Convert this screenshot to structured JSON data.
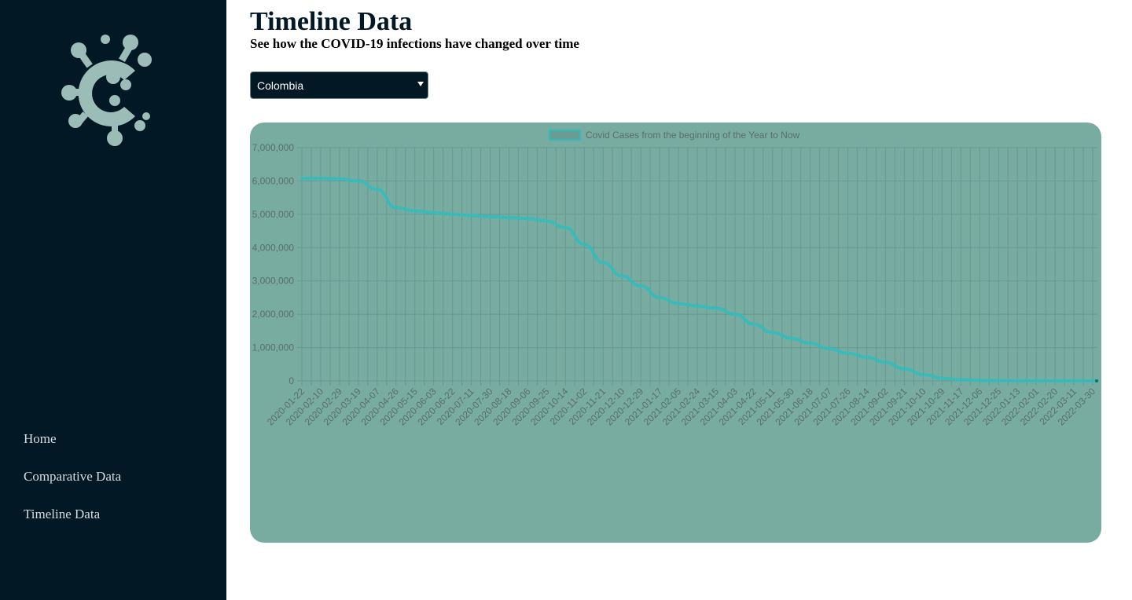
{
  "sidebar": {
    "logo_icon": "virus-logo-icon",
    "nav": [
      {
        "label": "Home"
      },
      {
        "label": "Comparative Data"
      },
      {
        "label": "Timeline Data"
      }
    ]
  },
  "main": {
    "title": "Timeline Data",
    "subtitle": "See how the COVID-19 infections have changed over time",
    "country_select": {
      "selected": "Colombia",
      "options": [
        "Colombia"
      ]
    }
  },
  "colors": {
    "sidebar_bg": "#021824",
    "chart_bg": "#78aca1",
    "line": "#2fbcbc",
    "grid": "#679a90"
  },
  "chart_data": {
    "type": "line",
    "title": "",
    "xlabel": "",
    "ylabel": "",
    "legend": {
      "label": "Covid Cases from the beginning of the Year to Now",
      "position": "top"
    },
    "grid": true,
    "ylim": [
      0,
      7000000
    ],
    "yticks": [
      0,
      1000000,
      2000000,
      3000000,
      4000000,
      5000000,
      6000000,
      7000000
    ],
    "ytick_labels": [
      "0",
      "1,000,000",
      "2,000,000",
      "3,000,000",
      "4,000,000",
      "5,000,000",
      "6,000,000",
      "7,000,000"
    ],
    "xtick_labels": [
      "2020-01-22",
      "2020-02-10",
      "2020-02-29",
      "2020-03-19",
      "2020-04-07",
      "2020-04-26",
      "2020-05-15",
      "2020-06-03",
      "2020-06-22",
      "2020-07-11",
      "2020-07-30",
      "2020-08-18",
      "2020-09-06",
      "2020-09-25",
      "2020-10-14",
      "2020-11-02",
      "2020-11-21",
      "2020-12-10",
      "2020-12-29",
      "2021-01-17",
      "2021-02-05",
      "2021-02-24",
      "2021-03-15",
      "2021-04-03",
      "2021-04-22",
      "2021-05-11",
      "2021-05-30",
      "2021-06-18",
      "2021-07-07",
      "2021-07-26",
      "2021-08-14",
      "2021-09-02",
      "2021-09-21",
      "2021-10-10",
      "2021-10-29",
      "2021-11-17",
      "2021-12-06",
      "2021-12-25",
      "2022-01-13",
      "2022-02-01",
      "2022-02-20",
      "2022-03-11",
      "2022-03-30"
    ],
    "series": [
      {
        "name": "Covid Cases from the beginning of the Year to Now",
        "x": [
          "2020-01-22",
          "2020-02-10",
          "2020-02-29",
          "2020-03-19",
          "2020-04-07",
          "2020-04-26",
          "2020-05-15",
          "2020-06-03",
          "2020-06-22",
          "2020-07-11",
          "2020-07-30",
          "2020-08-18",
          "2020-09-06",
          "2020-09-25",
          "2020-10-14",
          "2020-11-02",
          "2020-11-21",
          "2020-12-10",
          "2020-12-29",
          "2021-01-17",
          "2021-02-05",
          "2021-02-24",
          "2021-03-15",
          "2021-04-03",
          "2021-04-22",
          "2021-05-11",
          "2021-05-30",
          "2021-06-18",
          "2021-07-07",
          "2021-07-26",
          "2021-08-14",
          "2021-09-02",
          "2021-09-21",
          "2021-10-10",
          "2021-10-29",
          "2021-11-17",
          "2021-12-06",
          "2021-12-25",
          "2022-01-13",
          "2022-02-01",
          "2022-02-20",
          "2022-03-11",
          "2022-03-30",
          "2022-04-05"
        ],
        "values": [
          6080000,
          6080000,
          6060000,
          6000000,
          5750000,
          5200000,
          5100000,
          5050000,
          5000000,
          4960000,
          4930000,
          4900000,
          4870000,
          4800000,
          4600000,
          4100000,
          3550000,
          3150000,
          2850000,
          2500000,
          2320000,
          2250000,
          2180000,
          2000000,
          1700000,
          1450000,
          1280000,
          1130000,
          970000,
          830000,
          710000,
          560000,
          360000,
          190000,
          80000,
          35000,
          15000,
          8000,
          5000,
          3000,
          2000,
          1000,
          500,
          0
        ]
      }
    ]
  }
}
